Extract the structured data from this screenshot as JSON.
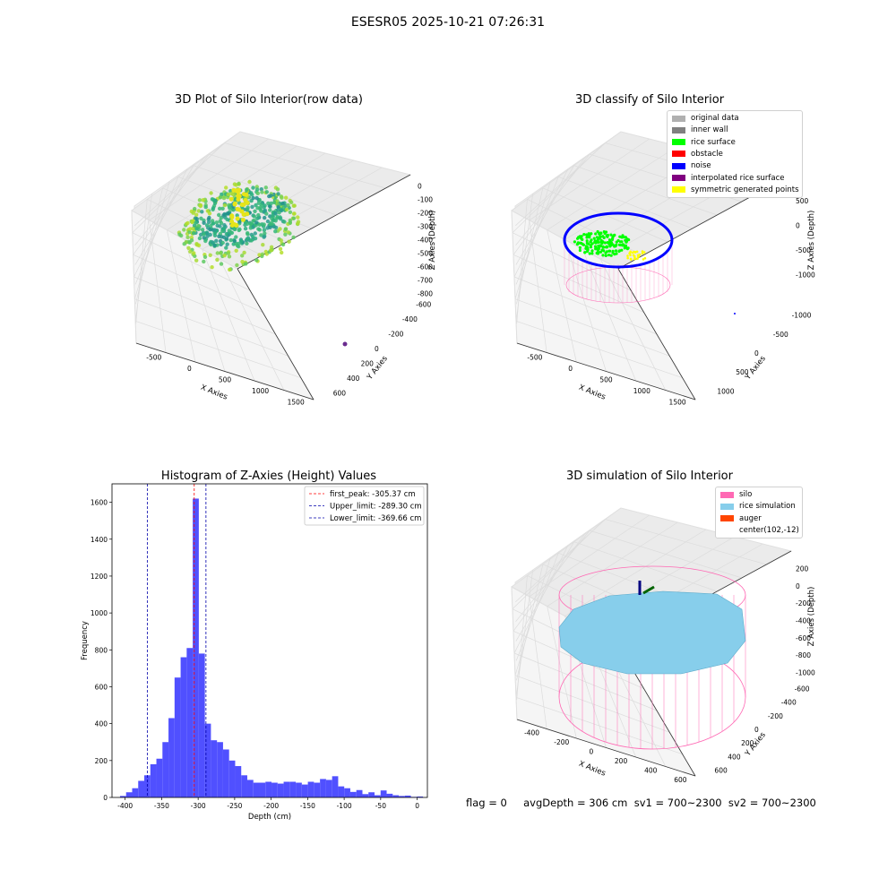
{
  "suptitle": "ESESR05 2025-10-21 07:26:31",
  "footer": "flag = 0     avgDepth = 306 cm  sv1 = 700~2300  sv2 = 700~2300",
  "panels": {
    "p1": {
      "title": "3D Plot of Silo Interior(row data)",
      "xlabel": "X Axies",
      "ylabel": "Y Axies",
      "zlabel": "Z Axies (Depth)",
      "xticks": [
        "-500",
        "0",
        "500",
        "1000",
        "1500"
      ],
      "yticks": [
        "600",
        "400",
        "200",
        "0",
        "-200",
        "-400",
        "-600"
      ],
      "zticks": [
        "0",
        "-100",
        "-200",
        "-300",
        "-400",
        "-500",
        "-600",
        "-700",
        "-800"
      ]
    },
    "p2": {
      "title": "3D classify of Silo Interior",
      "xlabel": "X Axies",
      "ylabel": "Y Axies",
      "zlabel": "Z Axies (Depth)",
      "xticks": [
        "-500",
        "0",
        "500",
        "1000",
        "1500"
      ],
      "yticks": [
        "1000",
        "500",
        "0",
        "-500",
        "-1000"
      ],
      "zticks": [
        "500",
        "0",
        "-500",
        "-1000"
      ],
      "legend": [
        {
          "label": "original data",
          "color": "#b0b0b0"
        },
        {
          "label": "inner wall",
          "color": "#808080"
        },
        {
          "label": "rice surface",
          "color": "#00ff00"
        },
        {
          "label": "obstacle",
          "color": "#ff0000"
        },
        {
          "label": "noise",
          "color": "#0000ff"
        },
        {
          "label": "interpolated rice surface",
          "color": "#800080"
        },
        {
          "label": "symmetric generated points",
          "color": "#ffff00"
        }
      ]
    },
    "p4": {
      "title": "3D simulation of Silo Interior",
      "xlabel": "X Axies",
      "ylabel": "Y Axies",
      "zlabel": "Z Axies (Depth)",
      "xticks": [
        "-400",
        "-200",
        "0",
        "200",
        "400",
        "600"
      ],
      "yticks": [
        "600",
        "400",
        "200",
        "0",
        "-200",
        "-400",
        "-600"
      ],
      "zticks": [
        "200",
        "0",
        "-200",
        "-400",
        "-600",
        "-800",
        "-1000"
      ],
      "legend": [
        {
          "label": "silo",
          "color": "#ff69b4"
        },
        {
          "label": "rice simulation",
          "color": "#87ceeb"
        },
        {
          "label": "auger",
          "color": "#ff4500"
        },
        {
          "label": "center(102,-12)",
          "color": ""
        }
      ]
    }
  },
  "chart_data": [
    {
      "type": "bar",
      "title": "Histogram of Z-Axies (Height) Values",
      "xlabel": "Depth (cm)",
      "ylabel": "Frequency",
      "xlim": [
        -418,
        14
      ],
      "ylim": [
        0,
        1700
      ],
      "xticks": [
        -400,
        -350,
        -300,
        -250,
        -200,
        -150,
        -100,
        -50,
        0
      ],
      "yticks": [
        0,
        200,
        400,
        600,
        800,
        1000,
        1200,
        1400,
        1600
      ],
      "bar_color": "#5050ff",
      "bin_width": 8.3,
      "bin_start": -407,
      "values": [
        8,
        28,
        50,
        90,
        120,
        180,
        210,
        300,
        430,
        650,
        760,
        810,
        1620,
        780,
        400,
        310,
        300,
        260,
        200,
        170,
        120,
        95,
        80,
        80,
        85,
        80,
        75,
        85,
        85,
        80,
        70,
        85,
        80,
        100,
        95,
        115,
        60,
        50,
        30,
        40,
        18,
        28,
        12,
        38,
        20,
        12,
        8,
        10,
        3,
        5
      ],
      "vlines": [
        {
          "x": -305.37,
          "color": "#ff0000",
          "label": "first_peak: -305.37 cm"
        },
        {
          "x": -289.3,
          "color": "#0000aa",
          "label": "Upper_limit: -289.30 cm"
        },
        {
          "x": -369.66,
          "color": "#0000aa",
          "label": "Lower_limit: -369.66 cm"
        }
      ],
      "legend": "top-right"
    }
  ]
}
